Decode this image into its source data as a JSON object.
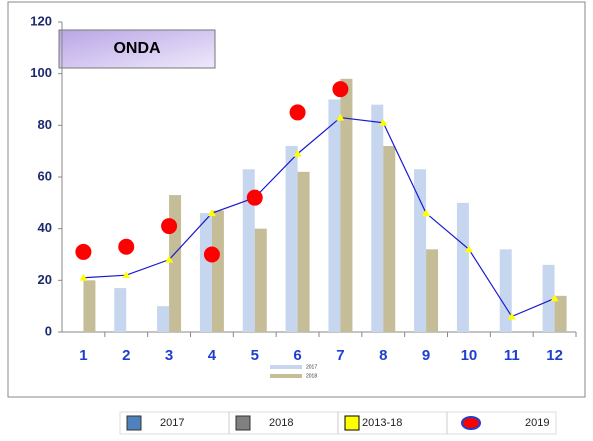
{
  "chart_data": {
    "type": "combo",
    "title": "ONDA",
    "categories": [
      "1",
      "2",
      "3",
      "4",
      "5",
      "6",
      "7",
      "8",
      "9",
      "10",
      "11",
      "12"
    ],
    "ylim": [
      0,
      120
    ],
    "yticks": [
      0,
      20,
      40,
      60,
      80,
      100,
      120
    ],
    "grid": false,
    "series": [
      {
        "name": "2017",
        "type": "bar",
        "color": "#c6d6ef",
        "legend_color": "#4f81bd",
        "values": [
          null,
          17,
          10,
          46,
          63,
          72,
          90,
          88,
          63,
          50,
          32,
          26
        ]
      },
      {
        "name": "2018",
        "type": "bar",
        "color": "#c5bc98",
        "legend_color": "#808080",
        "values": [
          20,
          null,
          53,
          47,
          40,
          62,
          98,
          72,
          32,
          null,
          null,
          14
        ]
      },
      {
        "name": "2013-18",
        "type": "line",
        "color": "#1a1ad0",
        "marker_color": "#ffff00",
        "values": [
          21,
          22,
          28,
          46,
          52,
          69,
          83,
          81,
          46,
          32,
          6,
          13
        ]
      },
      {
        "name": "2019",
        "type": "scatter",
        "color": "#ff0000",
        "values": [
          31,
          33,
          41,
          30,
          52,
          85,
          94,
          null,
          null,
          null,
          null,
          null
        ]
      }
    ]
  }
}
